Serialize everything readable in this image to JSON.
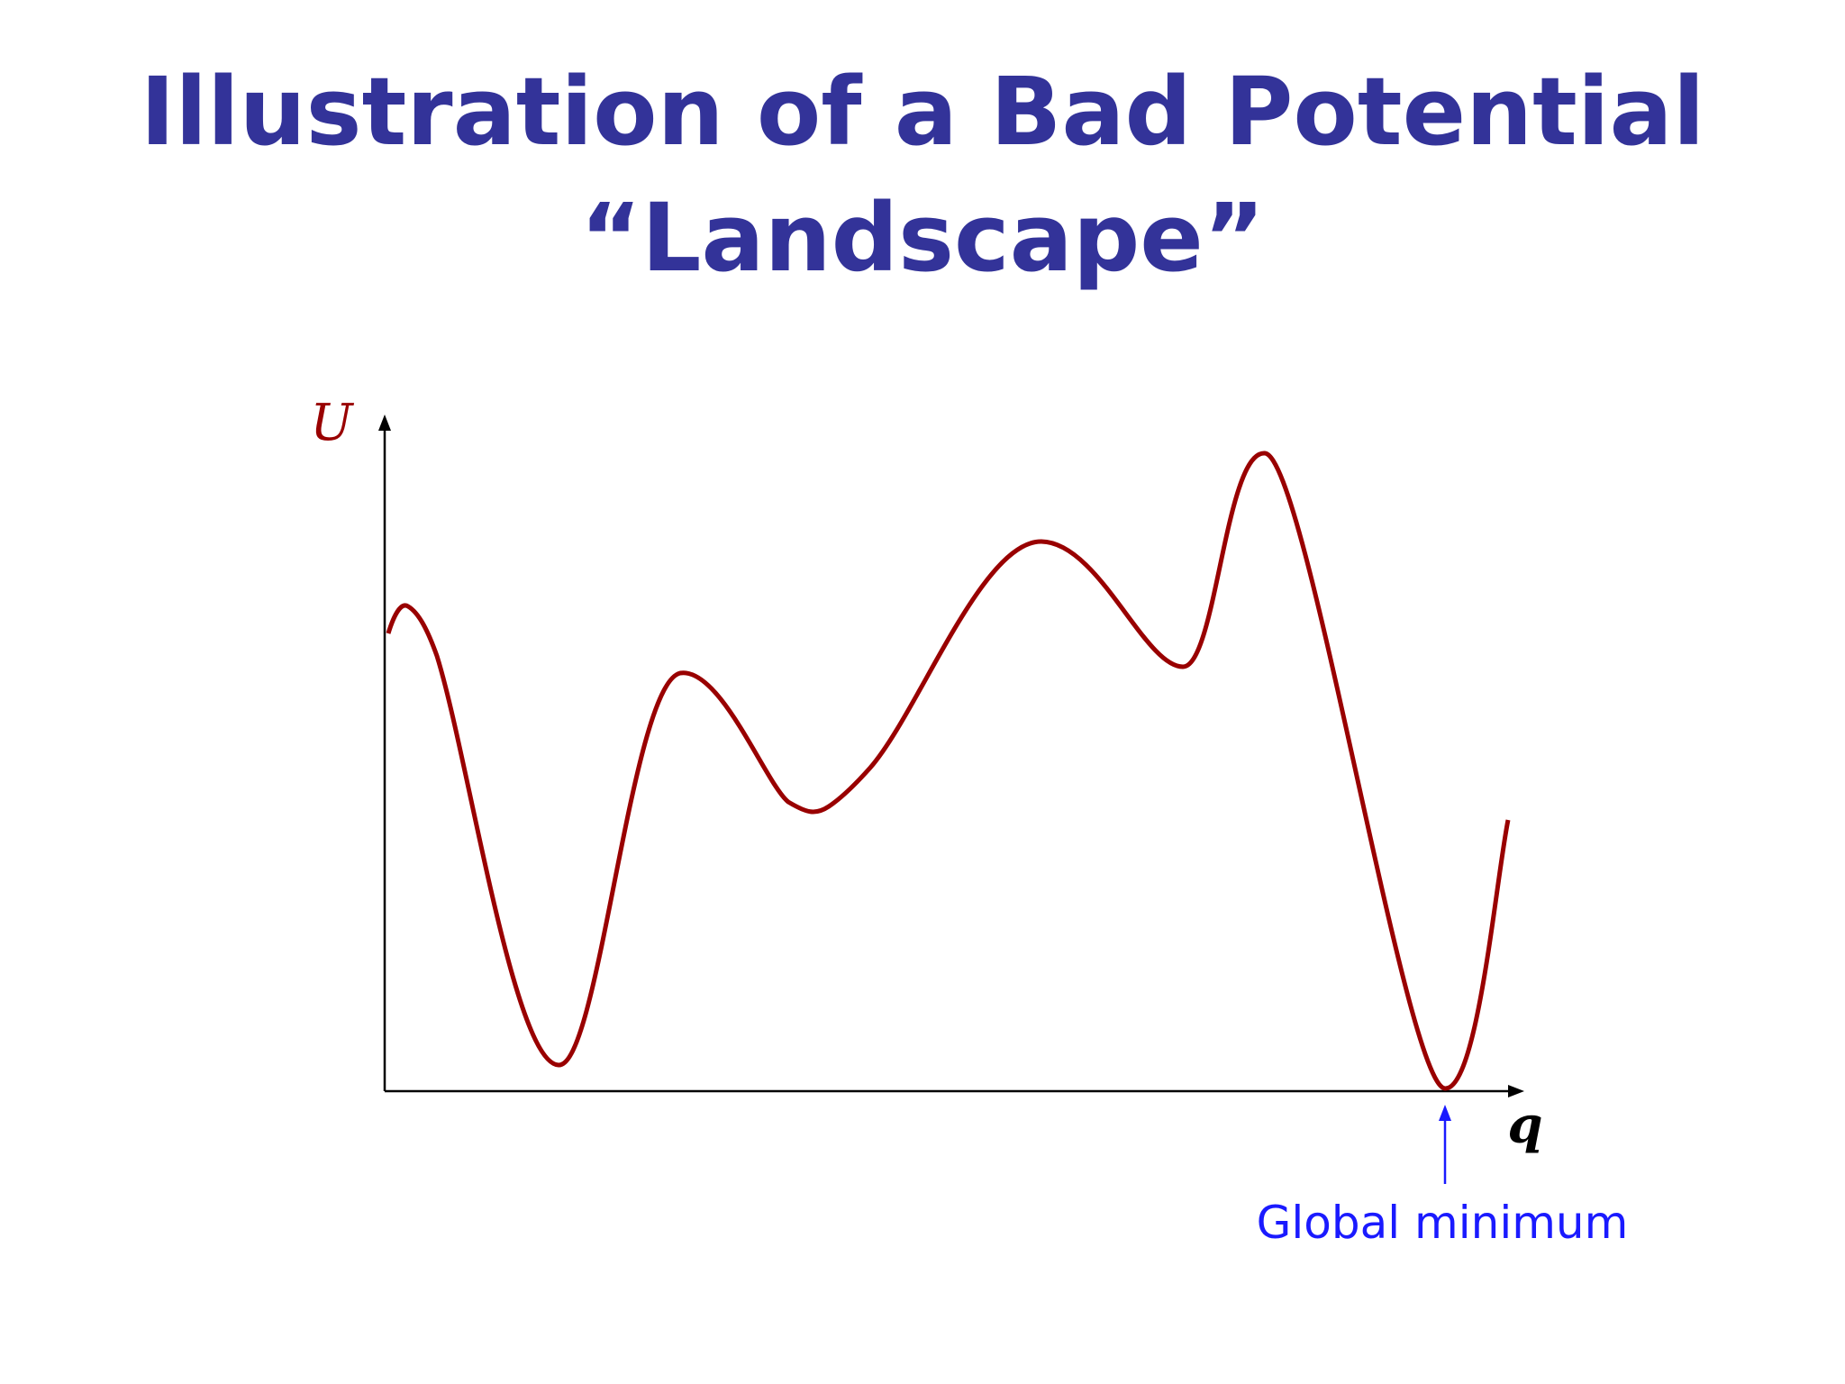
{
  "title": {
    "lines": [
      "Illustration of a Bad Potential",
      "“Landscape”"
    ]
  },
  "diagram": {
    "y_axis_label": "U",
    "x_axis_label": "q",
    "annotation": "Global minimum"
  }
}
